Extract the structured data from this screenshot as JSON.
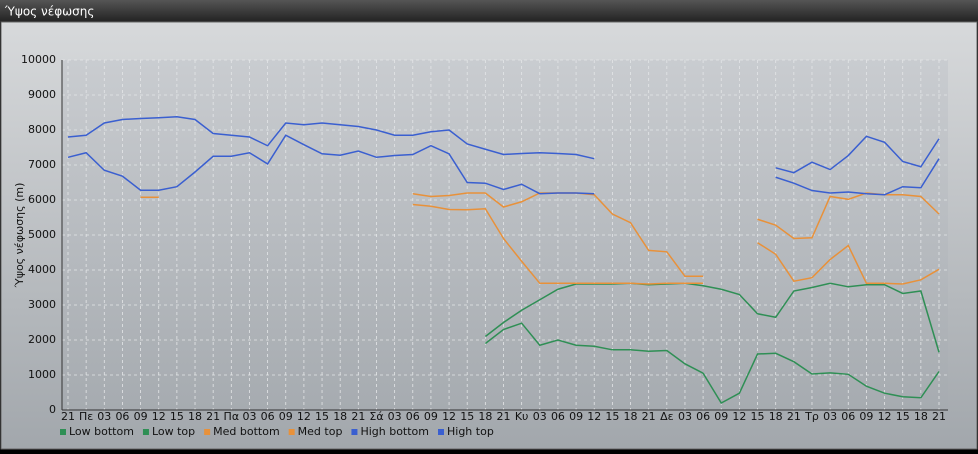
{
  "chart_data": {
    "type": "line",
    "title": "Ύψος νέφωσης",
    "y_label": "Ύψος νέφωσης (m)",
    "categories": [
      "21",
      "Πε",
      "03",
      "06",
      "09",
      "12",
      "15",
      "18",
      "21",
      "Πα",
      "03",
      "06",
      "09",
      "12",
      "15",
      "18",
      "21",
      "Σά",
      "03",
      "06",
      "09",
      "12",
      "15",
      "18",
      "21",
      "Κυ",
      "03",
      "06",
      "09",
      "12",
      "15",
      "18",
      "21",
      "Δε",
      "03",
      "06",
      "09",
      "12",
      "15",
      "18",
      "21",
      "Τρ",
      "03",
      "06",
      "09",
      "12",
      "15",
      "18",
      "21"
    ],
    "ylim": [
      0,
      10000
    ],
    "yticks": [
      0,
      1000,
      2000,
      3000,
      4000,
      5000,
      6000,
      7000,
      8000,
      9000,
      10000
    ],
    "grid": true,
    "series": [
      {
        "name": "Low bottom",
        "color": "#2f8f55",
        "values": [
          null,
          null,
          null,
          null,
          null,
          null,
          null,
          null,
          null,
          null,
          null,
          null,
          null,
          null,
          null,
          null,
          null,
          null,
          null,
          null,
          null,
          null,
          null,
          1900,
          2300,
          2480,
          1850,
          2000,
          1850,
          1820,
          1720,
          1720,
          1680,
          1700,
          1320,
          1050,
          200,
          480,
          1600,
          1620,
          1380,
          1030,
          1060,
          1020,
          680,
          480,
          380,
          350,
          1100
        ]
      },
      {
        "name": "Low top",
        "color": "#2f8f55",
        "values": [
          null,
          null,
          null,
          null,
          null,
          null,
          null,
          null,
          null,
          null,
          null,
          null,
          null,
          null,
          null,
          null,
          null,
          null,
          null,
          null,
          null,
          null,
          null,
          2100,
          2500,
          2850,
          3150,
          3450,
          3600,
          3600,
          3600,
          3620,
          3580,
          3600,
          3620,
          3550,
          3450,
          3300,
          2750,
          2650,
          3400,
          3500,
          3620,
          3520,
          3580,
          3580,
          3330,
          3400,
          1650
        ]
      },
      {
        "name": "Med bottom",
        "color": "#e8913a",
        "values": [
          null,
          null,
          null,
          null,
          null,
          null,
          null,
          null,
          null,
          null,
          null,
          null,
          null,
          null,
          null,
          null,
          null,
          null,
          null,
          5870,
          5820,
          5730,
          5720,
          5750,
          4900,
          4250,
          3620,
          3620,
          3620,
          3620,
          3620,
          3620,
          3600,
          3620,
          3620,
          3620,
          null,
          null,
          4780,
          4450,
          3680,
          3780,
          4300,
          4700,
          3620,
          3620,
          3600,
          3720,
          4020
        ]
      },
      {
        "name": "Med top",
        "color": "#e8913a",
        "values": [
          null,
          null,
          null,
          null,
          6080,
          6080,
          null,
          null,
          null,
          null,
          null,
          null,
          null,
          null,
          null,
          null,
          null,
          null,
          null,
          6180,
          6100,
          6130,
          6200,
          6200,
          5800,
          5950,
          6200,
          6200,
          6200,
          6150,
          5600,
          5350,
          4560,
          4520,
          3820,
          3820,
          null,
          null,
          5450,
          5280,
          4900,
          4920,
          6100,
          6020,
          6200,
          6150,
          6150,
          6100,
          5600
        ]
      },
      {
        "name": "High bottom",
        "color": "#3a5fd0",
        "values": [
          7220,
          7350,
          6850,
          6680,
          6280,
          6280,
          6380,
          6800,
          7250,
          7250,
          7350,
          7030,
          7850,
          7580,
          7320,
          7280,
          7400,
          7220,
          7270,
          7300,
          7550,
          7320,
          6500,
          6480,
          6300,
          6450,
          6180,
          6200,
          6200,
          6180,
          null,
          null,
          null,
          null,
          null,
          null,
          null,
          null,
          null,
          6650,
          6480,
          6270,
          6200,
          6230,
          6180,
          6150,
          6380,
          6350,
          7180
        ]
      },
      {
        "name": "High top",
        "color": "#3a5fd0",
        "values": [
          7800,
          7850,
          8200,
          8300,
          8330,
          8350,
          8380,
          8300,
          7900,
          7850,
          7800,
          7550,
          8200,
          8150,
          8200,
          8150,
          8100,
          8000,
          7850,
          7850,
          7950,
          8000,
          7600,
          7450,
          7300,
          7330,
          7350,
          7330,
          7300,
          7180,
          null,
          null,
          null,
          null,
          null,
          null,
          null,
          null,
          null,
          6920,
          6780,
          7080,
          6870,
          7270,
          7820,
          7650,
          7100,
          6950,
          7750
        ]
      }
    ]
  }
}
